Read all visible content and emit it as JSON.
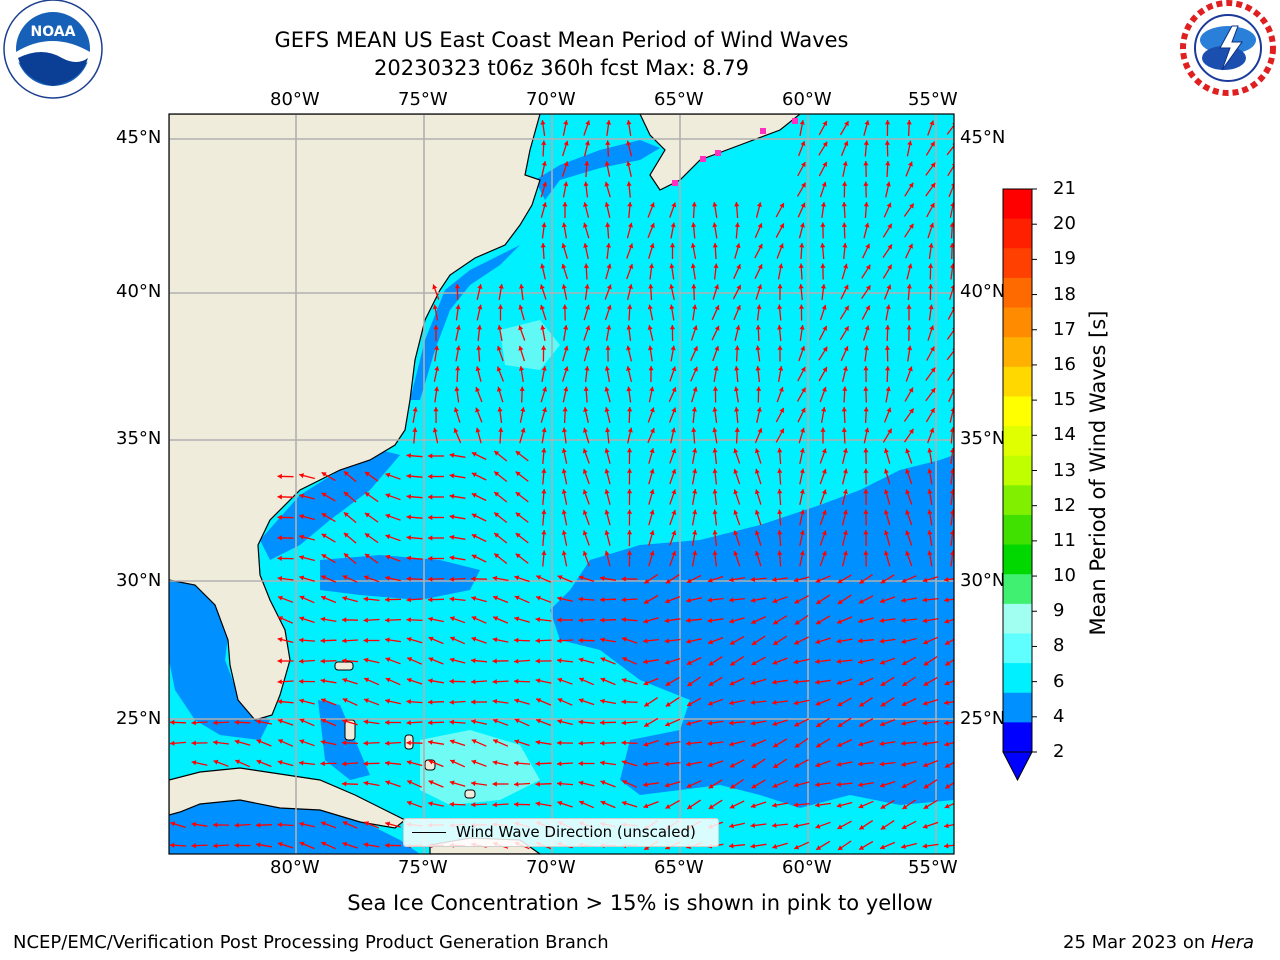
{
  "header": {
    "title": "GEFS MEAN US East Coast Mean Period of Wind Waves",
    "subtitle": "20230323 t06z 360h fcst   Max: 8.79"
  },
  "logos": {
    "noaa": {
      "text": "NOAA",
      "ring_text": "NATIONAL OCEANIC AND ATMOSPHERIC ADMINISTRATION · U.S. DEPARTMENT OF COMMERCE ·"
    },
    "nws": {
      "ring_text": "NATIONAL WEATHER SERVICE"
    }
  },
  "map": {
    "lon_labels": [
      "80°W",
      "75°W",
      "70°W",
      "65°W",
      "60°W",
      "55°W"
    ],
    "lat_labels": [
      "45°N",
      "40°N",
      "35°N",
      "30°N",
      "25°N"
    ],
    "legend_label": "Wind Wave Direction (unscaled)",
    "arrow_color": "#ff0000",
    "land_color": "#efecdc",
    "grid_color": "#b0b0b0"
  },
  "colorbar": {
    "label": "Mean Period of Wind Waves [s]",
    "ticks": [
      "21",
      "20",
      "19",
      "18",
      "17",
      "16",
      "15",
      "14",
      "13",
      "12",
      "11",
      "10",
      "9",
      "8",
      "6",
      "4",
      "2"
    ],
    "colors": [
      "#ff0000",
      "#ff2000",
      "#ff4000",
      "#ff6a00",
      "#ff8c00",
      "#ffb000",
      "#ffd800",
      "#ffff00",
      "#e0ff00",
      "#c0ff00",
      "#80f000",
      "#40e000",
      "#00d800",
      "#40f070",
      "#a0fff0",
      "#60ffff",
      "#00f0ff",
      "#0090ff",
      "#0000ff"
    ]
  },
  "footer": {
    "note": "Sea Ice Concentration > 15% is shown in pink to yellow",
    "credit": "NCEP/EMC/Verification Post Processing Product Generation Branch",
    "date": "25 Mar 2023 on ",
    "host": "Hera"
  }
}
